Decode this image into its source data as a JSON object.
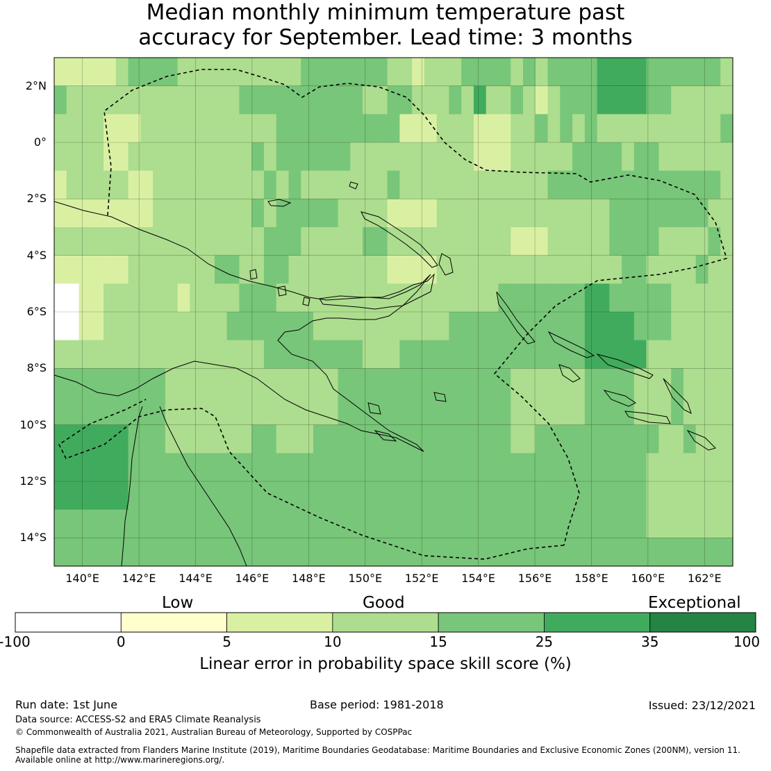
{
  "title": {
    "line1": "Median monthly minimum temperature past",
    "line2": "accuracy for September. Lead time: 3 months"
  },
  "map": {
    "lat_labels": [
      "2°N",
      "0°",
      "2°S",
      "4°S",
      "6°S",
      "8°S",
      "10°S",
      "12°S",
      "14°S"
    ],
    "lon_labels": [
      "140°E",
      "142°E",
      "144°E",
      "146°E",
      "148°E",
      "150°E",
      "152°E",
      "154°E",
      "156°E",
      "158°E",
      "160°E",
      "162°E"
    ],
    "lon_range": [
      139.0,
      163.0
    ],
    "lat_range": [
      -15.0,
      3.0
    ],
    "grid": true,
    "data_grid_rows": [
      "2222234444333333333344444443323334444343444455554444443",
      "4333333333333334444444444334433343533432344455554433333",
      "3333222333333333334444444444222333222334343433333333334",
      "3333223333333333434444443333333333222333334444344333333",
      "2333332233333333343433333334333333333333444444444444443",
      "2222222233333333434444433332222333333333333334444444433",
      "3333333333333333344433333443333333333222333334444333343",
      "2222223333333443344333333332222333333333333333443333433",
      "0022333333233334443333333333333333334444444554444433333",
      "0022333333333344444443333333333344444444444555544433333",
      "3333333333333333344444444333444444444444444555553333333",
      "4444444443333333333333344444444444444333333444433343333",
      "4444444443333333333333344444444444444333333444433343333",
      "5555554443333333443334444444444444444334444444444334333",
      "5555554444444444444444444444444444444444444444443333333",
      "5555554444444444444444444444444444444444444444443333333",
      "4444444444444444444444444444444444444444444444443333333",
      "4444444444444444444444444444444444444444444444444444444"
    ]
  },
  "legend": {
    "top_labels": [
      "Low",
      "Good",
      "Exceptional"
    ],
    "tick_labels": [
      "-100",
      "0",
      "5",
      "10",
      "15",
      "25",
      "35",
      "100"
    ],
    "colors": [
      "#ffffff",
      "#ffffcc",
      "#d9f0a3",
      "#addd8e",
      "#78c679",
      "#41ab5d",
      "#238443"
    ],
    "axis_label": "Linear error in probability space skill score (%)"
  },
  "footer": {
    "run_date": "Run date: 1st June",
    "base_period": "Base period: 1981-2018",
    "issued": "Issued: 23/12/2021",
    "data_source": "Data source: ACCESS-S2 and ERA5 Climate Reanalysis",
    "copyright": "© Commonwealth of Australia 2021, Australian Bureau of Meteorology, Supported by COSPPac",
    "shapefile_line1": "Shapefile data extracted from Flanders Marine Institute (2019), Maritime Boundaries Geodatabase: Maritime Boundaries and Exclusive Economic Zones (200NM), version 11.",
    "shapefile_line2": "Available online at http://www.marineregions.org/."
  }
}
